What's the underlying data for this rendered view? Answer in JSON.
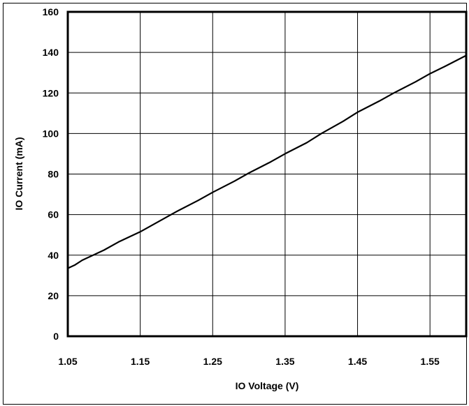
{
  "chart_data": {
    "type": "line",
    "title": "",
    "xlabel": "IO Voltage (V)",
    "ylabel": "IO Current (mA)",
    "xlim": [
      1.05,
      1.6
    ],
    "ylim": [
      0,
      160
    ],
    "x_ticks": [
      1.05,
      1.15,
      1.25,
      1.35,
      1.45,
      1.55
    ],
    "x_tick_labels": [
      "1.05",
      "1.15",
      "1.25",
      "1.35",
      "1.45",
      "1.55"
    ],
    "y_ticks": [
      0,
      20,
      40,
      60,
      80,
      100,
      120,
      140,
      160
    ],
    "y_tick_labels": [
      "0",
      "20",
      "40",
      "60",
      "80",
      "100",
      "120",
      "140",
      "160"
    ],
    "grid": true,
    "legend": "none",
    "line_color": "#000000",
    "series": [
      {
        "x": [
          1.05,
          1.06,
          1.07,
          1.1,
          1.12,
          1.15,
          1.17,
          1.2,
          1.23,
          1.25,
          1.28,
          1.3,
          1.33,
          1.35,
          1.38,
          1.4,
          1.43,
          1.45,
          1.48,
          1.5,
          1.53,
          1.55,
          1.57,
          1.6
        ],
        "y": [
          33.5,
          35.2,
          37.5,
          42.5,
          46.5,
          51.5,
          55.5,
          61.5,
          67.0,
          71.0,
          76.5,
          80.5,
          86.0,
          90.0,
          95.5,
          100.0,
          106.0,
          110.5,
          116.0,
          120.0,
          125.5,
          129.5,
          133.0,
          138.5
        ]
      }
    ]
  }
}
